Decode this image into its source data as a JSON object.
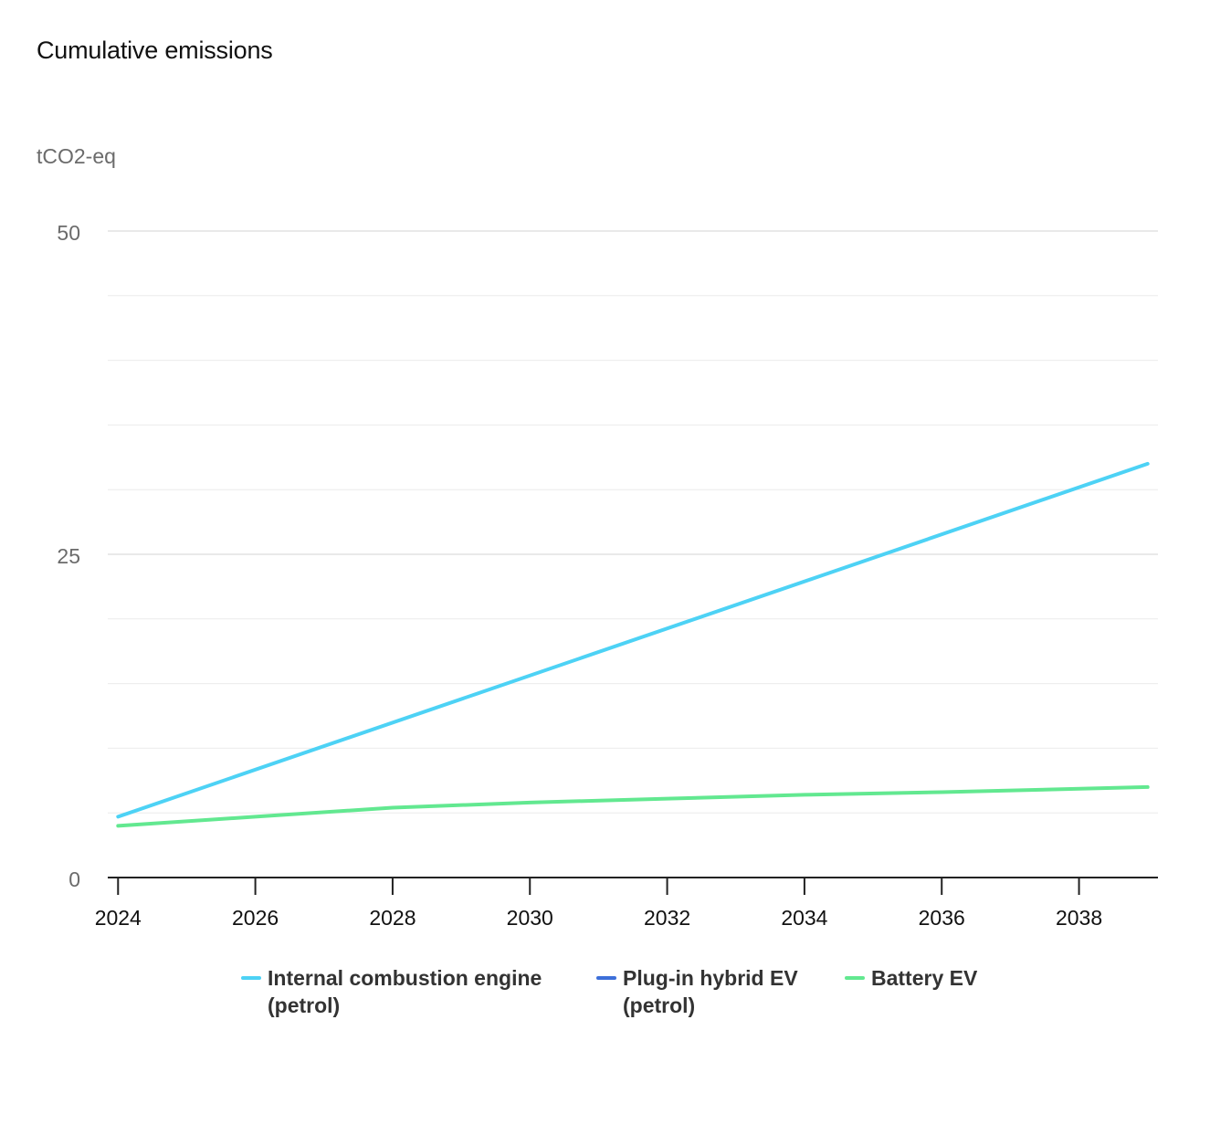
{
  "chart_data": {
    "type": "line",
    "title": "Cumulative emissions",
    "ylabel": "tCO2-eq",
    "xlabel": "",
    "xlim": [
      2023.85,
      2039.15
    ],
    "ylim": [
      0,
      50
    ],
    "x_ticks": [
      2024,
      2026,
      2028,
      2030,
      2032,
      2034,
      2036,
      2038
    ],
    "y_ticks": [
      0,
      25,
      50
    ],
    "y_gridlines": [
      5,
      10,
      15,
      20,
      25,
      30,
      35,
      40,
      45,
      50
    ],
    "grid": true,
    "legend_position": "bottom",
    "series": [
      {
        "name": "Internal combustion engine (petrol)",
        "color": "#4dd2f5",
        "x": [
          2024,
          2039
        ],
        "y": [
          4.7,
          32
        ]
      },
      {
        "name": "Plug-in hybrid EV (petrol)",
        "color": "#3d6fd9",
        "x": [],
        "y": []
      },
      {
        "name": "Battery EV",
        "color": "#62e890",
        "x": [
          2024,
          2026,
          2028,
          2030,
          2032,
          2034,
          2036,
          2039
        ],
        "y": [
          4,
          4.7,
          5.4,
          5.8,
          6.1,
          6.4,
          6.6,
          7.0
        ]
      }
    ]
  }
}
